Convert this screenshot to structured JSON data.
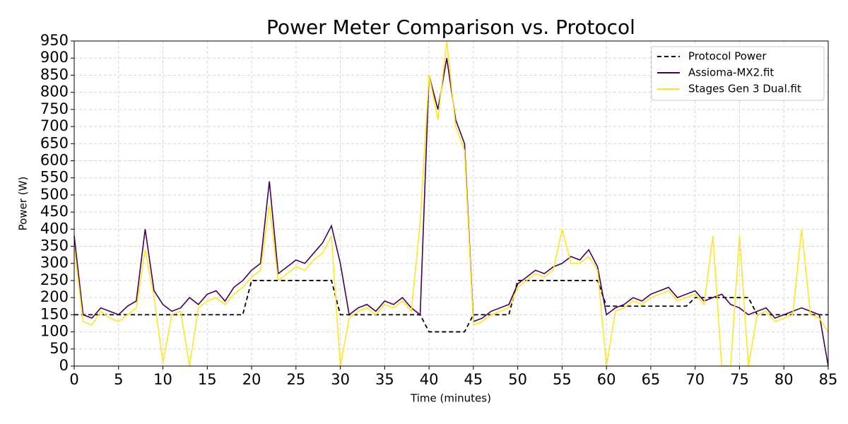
{
  "chart_data": {
    "type": "line",
    "title": "Power Meter Comparison vs. Protocol",
    "x_label": "Time (minutes)",
    "y_label": "Power (W)",
    "x": [
      0,
      1,
      2,
      3,
      4,
      5,
      6,
      7,
      8,
      9,
      10,
      11,
      12,
      13,
      14,
      15,
      16,
      17,
      18,
      19,
      20,
      21,
      22,
      23,
      24,
      25,
      26,
      27,
      28,
      29,
      30,
      31,
      32,
      33,
      34,
      35,
      36,
      37,
      38,
      39,
      40,
      41,
      42,
      43,
      44,
      45,
      46,
      47,
      48,
      49,
      50,
      51,
      52,
      53,
      54,
      55,
      56,
      57,
      58,
      59,
      60,
      61,
      62,
      63,
      64,
      65,
      66,
      67,
      68,
      69,
      70,
      71,
      72,
      73,
      74,
      75,
      76,
      77,
      78,
      79,
      80,
      81,
      82,
      83,
      84,
      85
    ],
    "series": [
      {
        "name": "Protocol Power",
        "color": "#000000",
        "dash": true,
        "values": [
          150,
          150,
          150,
          150,
          150,
          150,
          150,
          150,
          150,
          150,
          150,
          150,
          150,
          150,
          150,
          150,
          150,
          150,
          150,
          150,
          250,
          250,
          250,
          250,
          250,
          250,
          250,
          250,
          250,
          250,
          150,
          150,
          150,
          150,
          150,
          150,
          150,
          150,
          150,
          150,
          100,
          100,
          100,
          100,
          100,
          150,
          150,
          150,
          150,
          150,
          250,
          250,
          250,
          250,
          250,
          250,
          250,
          250,
          250,
          250,
          175,
          175,
          175,
          175,
          175,
          175,
          175,
          175,
          175,
          175,
          200,
          200,
          200,
          200,
          200,
          200,
          200,
          150,
          150,
          150,
          150,
          150,
          150,
          150,
          150,
          150
        ]
      },
      {
        "name": "Assioma-MX2.fit",
        "color": "#440154",
        "dash": false,
        "values": [
          380,
          150,
          140,
          170,
          160,
          150,
          175,
          190,
          400,
          220,
          180,
          160,
          170,
          200,
          180,
          210,
          220,
          190,
          230,
          250,
          280,
          300,
          540,
          270,
          290,
          310,
          300,
          330,
          360,
          410,
          300,
          150,
          170,
          180,
          160,
          190,
          180,
          200,
          170,
          150,
          850,
          750,
          900,
          720,
          650,
          130,
          140,
          160,
          170,
          180,
          240,
          260,
          280,
          270,
          290,
          300,
          320,
          310,
          340,
          290,
          150,
          170,
          180,
          200,
          190,
          210,
          220,
          230,
          200,
          210,
          220,
          190,
          200,
          210,
          180,
          170,
          150,
          160,
          170,
          140,
          150,
          160,
          170,
          160,
          150,
          0
        ]
      },
      {
        "name": "Stages Gen 3 Dual.fit",
        "color": "#fde725",
        "dash": false,
        "values": [
          350,
          130,
          120,
          160,
          140,
          130,
          150,
          170,
          340,
          200,
          10,
          150,
          160,
          0,
          170,
          190,
          200,
          180,
          210,
          230,
          260,
          280,
          470,
          250,
          270,
          290,
          280,
          310,
          330,
          380,
          0,
          140,
          160,
          170,
          150,
          180,
          170,
          190,
          160,
          420,
          850,
          720,
          950,
          700,
          630,
          120,
          130,
          150,
          160,
          170,
          230,
          250,
          270,
          260,
          280,
          400,
          300,
          300,
          320,
          280,
          0,
          160,
          170,
          190,
          180,
          200,
          210,
          220,
          190,
          200,
          210,
          180,
          380,
          0,
          0,
          380,
          0,
          150,
          160,
          130,
          140,
          150,
          400,
          150,
          140,
          100
        ]
      }
    ],
    "xlim": [
      0,
      85
    ],
    "xticks": [
      0,
      5,
      10,
      15,
      20,
      25,
      30,
      35,
      40,
      45,
      50,
      55,
      60,
      65,
      70,
      75,
      80,
      85
    ],
    "ylim": [
      0,
      950
    ],
    "yticks": [
      0,
      50,
      100,
      150,
      200,
      250,
      300,
      350,
      400,
      450,
      500,
      550,
      600,
      650,
      700,
      750,
      800,
      850,
      900,
      950
    ],
    "grid": true,
    "legend": "upper right"
  }
}
